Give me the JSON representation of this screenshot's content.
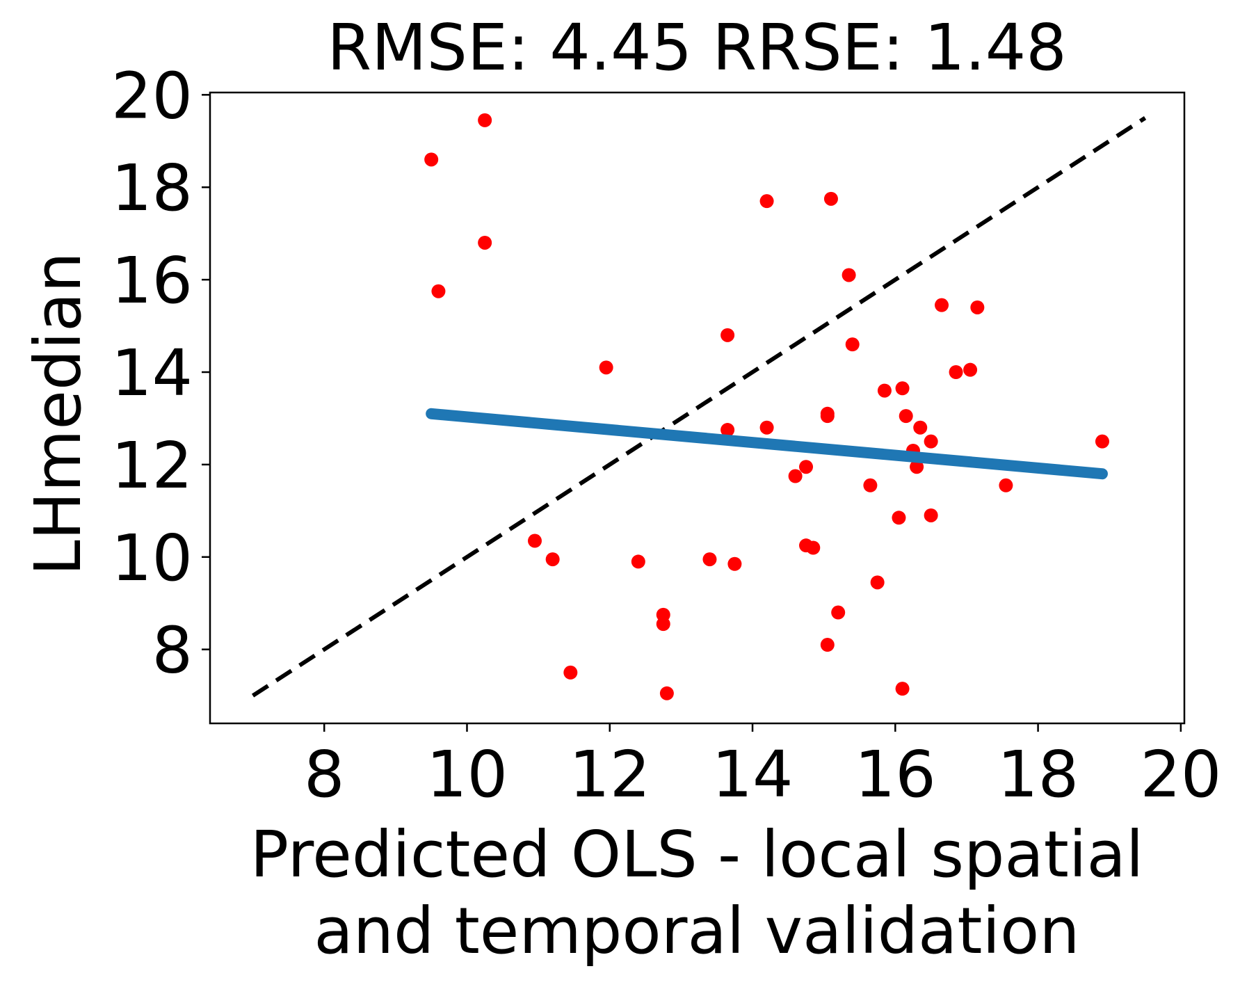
{
  "chart_data": {
    "type": "scatter",
    "title": "RMSE: 4.45 RRSE: 1.48",
    "xlabel_lines": [
      "Predicted OLS - local spatial",
      "and temporal validation"
    ],
    "ylabel": "LHmedian",
    "xlim": [
      6.4,
      20.05
    ],
    "ylim": [
      6.4,
      20.05
    ],
    "x_ticks": [
      8,
      10,
      12,
      14,
      16,
      18,
      20
    ],
    "y_ticks": [
      8,
      10,
      12,
      14,
      16,
      18,
      20
    ],
    "x_tick_labels": [
      "8",
      "10",
      "12",
      "14",
      "16",
      "18",
      "20"
    ],
    "y_tick_labels": [
      "8",
      "10",
      "12",
      "14",
      "16",
      "18",
      "20"
    ],
    "grid": false,
    "colors": {
      "points": "#ff0000",
      "fit_line": "#1f77b4",
      "identity_line": "#000000"
    },
    "identity_line": {
      "x": [
        7.0,
        19.5
      ],
      "y": [
        7.0,
        19.5
      ],
      "style": "dashed"
    },
    "fit_line": {
      "x": [
        9.5,
        18.9
      ],
      "y": [
        13.1,
        11.8
      ]
    },
    "points": [
      {
        "x": 9.5,
        "y": 18.6
      },
      {
        "x": 10.25,
        "y": 19.45
      },
      {
        "x": 10.25,
        "y": 16.8
      },
      {
        "x": 9.6,
        "y": 15.75
      },
      {
        "x": 11.95,
        "y": 14.1
      },
      {
        "x": 10.95,
        "y": 10.35
      },
      {
        "x": 11.2,
        "y": 9.95
      },
      {
        "x": 12.4,
        "y": 9.9
      },
      {
        "x": 12.75,
        "y": 8.75
      },
      {
        "x": 12.75,
        "y": 8.55
      },
      {
        "x": 11.45,
        "y": 7.5
      },
      {
        "x": 12.8,
        "y": 7.05
      },
      {
        "x": 13.4,
        "y": 9.95
      },
      {
        "x": 13.75,
        "y": 9.85
      },
      {
        "x": 13.65,
        "y": 14.8
      },
      {
        "x": 13.65,
        "y": 12.75
      },
      {
        "x": 14.2,
        "y": 17.7
      },
      {
        "x": 14.2,
        "y": 12.8
      },
      {
        "x": 14.6,
        "y": 11.75
      },
      {
        "x": 14.75,
        "y": 11.95
      },
      {
        "x": 14.75,
        "y": 10.25
      },
      {
        "x": 14.85,
        "y": 10.2
      },
      {
        "x": 15.05,
        "y": 8.1
      },
      {
        "x": 15.05,
        "y": 13.1
      },
      {
        "x": 15.05,
        "y": 13.05
      },
      {
        "x": 15.1,
        "y": 17.75
      },
      {
        "x": 15.2,
        "y": 8.8
      },
      {
        "x": 15.35,
        "y": 16.1
      },
      {
        "x": 15.4,
        "y": 14.6
      },
      {
        "x": 15.65,
        "y": 11.55
      },
      {
        "x": 15.75,
        "y": 9.45
      },
      {
        "x": 15.85,
        "y": 13.6
      },
      {
        "x": 16.05,
        "y": 10.85
      },
      {
        "x": 16.1,
        "y": 13.65
      },
      {
        "x": 16.1,
        "y": 7.15
      },
      {
        "x": 16.15,
        "y": 13.05
      },
      {
        "x": 16.25,
        "y": 12.3
      },
      {
        "x": 16.3,
        "y": 11.95
      },
      {
        "x": 16.35,
        "y": 12.8
      },
      {
        "x": 16.5,
        "y": 12.5
      },
      {
        "x": 16.5,
        "y": 10.9
      },
      {
        "x": 16.65,
        "y": 15.45
      },
      {
        "x": 16.85,
        "y": 14.0
      },
      {
        "x": 17.05,
        "y": 14.05
      },
      {
        "x": 17.15,
        "y": 15.4
      },
      {
        "x": 17.55,
        "y": 11.55
      },
      {
        "x": 18.9,
        "y": 12.5
      }
    ]
  }
}
